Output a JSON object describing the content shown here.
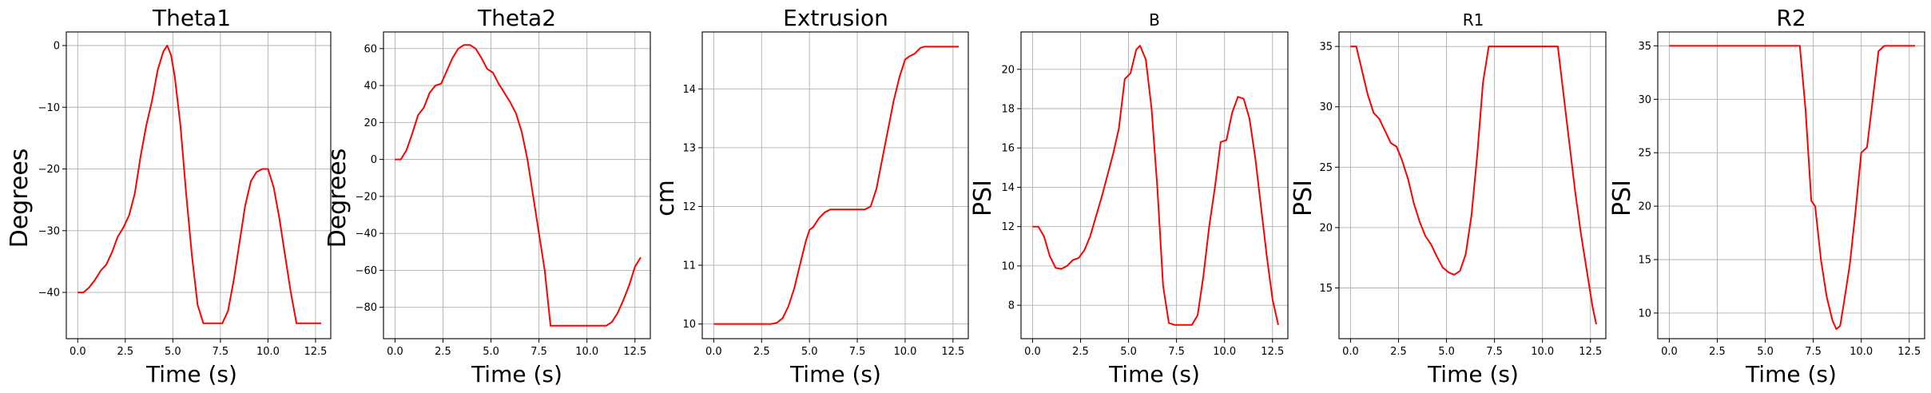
{
  "chart_data": [
    {
      "type": "line",
      "title": "Theta1",
      "xlabel": "Time (s)",
      "ylabel": "Degrees",
      "xlim": [
        -0.6,
        13.3
      ],
      "ylim": [
        -47.5,
        2.2
      ],
      "xticks": [
        0.0,
        2.5,
        5.0,
        7.5,
        10.0,
        12.5
      ],
      "xtick_labels": [
        "0.0",
        "2.5",
        "5.0",
        "7.5",
        "10.0",
        "12.5"
      ],
      "yticks": [
        -40,
        -30,
        -20,
        -10,
        0
      ],
      "ytick_labels": [
        "−40",
        "−30",
        "−20",
        "−10",
        "0"
      ],
      "grid": true,
      "series": [
        {
          "color": "#ff0000",
          "x": [
            0,
            0.3,
            0.6,
            0.9,
            1.2,
            1.5,
            1.8,
            2.1,
            2.4,
            2.7,
            3.0,
            3.3,
            3.6,
            3.9,
            4.2,
            4.5,
            4.7,
            4.9,
            5.1,
            5.4,
            5.7,
            6.0,
            6.3,
            6.6,
            6.8,
            7.0,
            7.3,
            7.6,
            7.9,
            8.2,
            8.5,
            8.8,
            9.1,
            9.4,
            9.7,
            10.0,
            10.3,
            10.6,
            10.9,
            11.2,
            11.5,
            11.8,
            12.1,
            12.4,
            12.8
          ],
          "y": [
            -40,
            -40,
            -39.2,
            -38.0,
            -36.5,
            -35.5,
            -33.5,
            -31.0,
            -29.5,
            -27.5,
            -24,
            -18,
            -13,
            -9,
            -4,
            -1,
            0,
            -1.5,
            -5,
            -13,
            -24,
            -34,
            -42,
            -45,
            -45,
            -45,
            -45,
            -45,
            -43,
            -38,
            -32,
            -26,
            -22,
            -20.5,
            -20,
            -20,
            -23,
            -28,
            -34,
            -40,
            -45,
            -45,
            -45,
            -45,
            -45
          ]
        }
      ]
    },
    {
      "type": "line",
      "title": "Theta2",
      "xlabel": "Time (s)",
      "ylabel": "Degrees",
      "xlim": [
        -0.6,
        13.3
      ],
      "ylim": [
        -97,
        69
      ],
      "xticks": [
        0.0,
        2.5,
        5.0,
        7.5,
        10.0,
        12.5
      ],
      "xtick_labels": [
        "0.0",
        "2.5",
        "5.0",
        "7.5",
        "10.0",
        "12.5"
      ],
      "yticks": [
        -80,
        -60,
        -40,
        -20,
        0,
        20,
        40,
        60
      ],
      "ytick_labels": [
        "−80",
        "−60",
        "−40",
        "−20",
        "0",
        "20",
        "40",
        "60"
      ],
      "grid": true,
      "series": [
        {
          "color": "#ff0000",
          "x": [
            0,
            0.3,
            0.6,
            0.9,
            1.2,
            1.5,
            1.8,
            2.1,
            2.4,
            2.7,
            3.0,
            3.3,
            3.6,
            3.9,
            4.2,
            4.5,
            4.8,
            5.1,
            5.4,
            5.7,
            6.0,
            6.3,
            6.6,
            6.9,
            7.2,
            7.5,
            7.8,
            8.1,
            8.4,
            8.7,
            9.0,
            9.5,
            10.0,
            10.5,
            11.0,
            11.3,
            11.6,
            11.9,
            12.2,
            12.5,
            12.8
          ],
          "y": [
            0,
            0,
            5,
            14,
            24,
            28,
            36,
            40,
            41,
            48,
            55,
            60,
            62,
            62,
            60,
            55,
            49,
            47,
            41,
            36,
            31,
            25,
            15,
            0,
            -20,
            -40,
            -60,
            -90,
            -90,
            -90,
            -90,
            -90,
            -90,
            -90,
            -90,
            -88,
            -83,
            -76,
            -68,
            -58,
            -53
          ]
        }
      ]
    },
    {
      "type": "line",
      "title": "Extrusion",
      "xlabel": "Time (s)",
      "ylabel": "cm",
      "xlim": [
        -0.6,
        13.3
      ],
      "ylim": [
        9.75,
        14.97
      ],
      "xticks": [
        0.0,
        2.5,
        5.0,
        7.5,
        10.0,
        12.5
      ],
      "xtick_labels": [
        "0.0",
        "2.5",
        "5.0",
        "7.5",
        "10.0",
        "12.5"
      ],
      "yticks": [
        10,
        11,
        12,
        13,
        14
      ],
      "ytick_labels": [
        "10",
        "11",
        "12",
        "13",
        "14"
      ],
      "grid": true,
      "series": [
        {
          "color": "#ff0000",
          "x": [
            0,
            0.5,
            1.0,
            1.5,
            2.0,
            2.5,
            3.0,
            3.3,
            3.6,
            3.9,
            4.2,
            4.5,
            4.8,
            5.0,
            5.2,
            5.5,
            5.8,
            6.1,
            6.5,
            7.0,
            7.5,
            7.9,
            8.2,
            8.5,
            8.8,
            9.1,
            9.4,
            9.7,
            10.0,
            10.2,
            10.5,
            10.8,
            11.0,
            11.5,
            12.0,
            12.5,
            12.8
          ],
          "y": [
            10,
            10,
            10,
            10,
            10,
            10,
            10,
            10.02,
            10.1,
            10.3,
            10.6,
            11.0,
            11.4,
            11.6,
            11.65,
            11.8,
            11.9,
            11.95,
            11.95,
            11.95,
            11.95,
            11.95,
            12.0,
            12.3,
            12.8,
            13.3,
            13.8,
            14.2,
            14.5,
            14.55,
            14.6,
            14.7,
            14.72,
            14.72,
            14.72,
            14.72,
            14.72
          ]
        }
      ]
    },
    {
      "type": "line",
      "title": "B",
      "xlabel": "Time (s)",
      "ylabel": "PSI",
      "xlim": [
        -0.6,
        13.3
      ],
      "ylim": [
        6.3,
        21.9
      ],
      "xticks": [
        0.0,
        2.5,
        5.0,
        7.5,
        10.0,
        12.5
      ],
      "xtick_labels": [
        "0.0",
        "2.5",
        "5.0",
        "7.5",
        "10.0",
        "12.5"
      ],
      "yticks": [
        8,
        10,
        12,
        14,
        16,
        18,
        20
      ],
      "ytick_labels": [
        "8",
        "10",
        "12",
        "14",
        "16",
        "18",
        "20"
      ],
      "grid": true,
      "series": [
        {
          "color": "#ff0000",
          "x": [
            0,
            0.3,
            0.6,
            0.9,
            1.2,
            1.5,
            1.8,
            2.1,
            2.4,
            2.7,
            3.0,
            3.3,
            3.6,
            3.9,
            4.2,
            4.5,
            4.8,
            5.1,
            5.4,
            5.6,
            5.9,
            6.2,
            6.5,
            6.8,
            7.1,
            7.4,
            7.7,
            8.0,
            8.3,
            8.6,
            8.9,
            9.2,
            9.5,
            9.8,
            10.1,
            10.4,
            10.7,
            11.0,
            11.3,
            11.6,
            11.9,
            12.2,
            12.5,
            12.8
          ],
          "y": [
            12,
            12,
            11.5,
            10.5,
            9.9,
            9.85,
            10,
            10.3,
            10.4,
            10.8,
            11.5,
            12.5,
            13.5,
            14.6,
            15.7,
            17,
            19.5,
            19.8,
            21,
            21.2,
            20.5,
            18,
            14,
            9,
            7.1,
            7,
            7,
            7,
            7,
            7.5,
            9.5,
            12,
            14,
            16.3,
            16.4,
            17.8,
            18.6,
            18.5,
            17.5,
            15.5,
            13,
            10.5,
            8.3,
            7
          ]
        }
      ]
    },
    {
      "type": "line",
      "title": "R1",
      "xlabel": "Time (s)",
      "ylabel": "PSI",
      "xlim": [
        -0.6,
        13.3
      ],
      "ylim": [
        10.8,
        36.2
      ],
      "xticks": [
        0.0,
        2.5,
        5.0,
        7.5,
        10.0,
        12.5
      ],
      "xtick_labels": [
        "0.0",
        "2.5",
        "5.0",
        "7.5",
        "10.0",
        "12.5"
      ],
      "yticks": [
        15,
        20,
        25,
        30,
        35
      ],
      "ytick_labels": [
        "15",
        "20",
        "25",
        "30",
        "35"
      ],
      "grid": true,
      "series": [
        {
          "color": "#ff0000",
          "x": [
            0,
            0.3,
            0.6,
            0.9,
            1.2,
            1.5,
            1.8,
            2.1,
            2.4,
            2.7,
            3.0,
            3.3,
            3.6,
            3.9,
            4.2,
            4.5,
            4.8,
            5.1,
            5.4,
            5.7,
            6.0,
            6.3,
            6.6,
            6.9,
            7.2,
            7.5,
            8.0,
            9.0,
            10.0,
            10.5,
            10.8,
            11.1,
            11.4,
            11.7,
            12.0,
            12.3,
            12.6,
            12.8
          ],
          "y": [
            35,
            35,
            33,
            31,
            29.5,
            29,
            28,
            27,
            26.7,
            25.5,
            24,
            22,
            20.5,
            19.3,
            18.6,
            17.6,
            16.7,
            16.3,
            16.1,
            16.4,
            17.8,
            21,
            26,
            32,
            35,
            35,
            35,
            35,
            35,
            35,
            35,
            31,
            27,
            23,
            19.5,
            16.5,
            13.5,
            12
          ]
        }
      ]
    },
    {
      "type": "line",
      "title": "R2",
      "xlabel": "Time (s)",
      "ylabel": "PSI",
      "xlim": [
        -0.6,
        13.3
      ],
      "ylim": [
        7.6,
        36.3
      ],
      "xticks": [
        0.0,
        2.5,
        5.0,
        7.5,
        10.0,
        12.5
      ],
      "xtick_labels": [
        "0.0",
        "2.5",
        "5.0",
        "7.5",
        "10.0",
        "12.5"
      ],
      "yticks": [
        10,
        15,
        20,
        25,
        30,
        35
      ],
      "ytick_labels": [
        "10",
        "15",
        "20",
        "25",
        "30",
        "35"
      ],
      "grid": true,
      "series": [
        {
          "color": "#ff0000",
          "x": [
            0,
            1.0,
            2.0,
            3.0,
            4.0,
            5.0,
            6.0,
            6.8,
            7.1,
            7.4,
            7.6,
            7.9,
            8.2,
            8.5,
            8.7,
            8.9,
            9.1,
            9.4,
            9.7,
            10.0,
            10.3,
            10.6,
            10.9,
            11.2,
            11.5,
            12.0,
            12.5,
            12.8
          ],
          "y": [
            35,
            35,
            35,
            35,
            35,
            35,
            35,
            35,
            29,
            20.5,
            20,
            15,
            11.5,
            9.3,
            8.5,
            8.8,
            11,
            14.5,
            19.5,
            25,
            25.5,
            30,
            34.5,
            35,
            35,
            35,
            35,
            35
          ]
        }
      ]
    }
  ]
}
